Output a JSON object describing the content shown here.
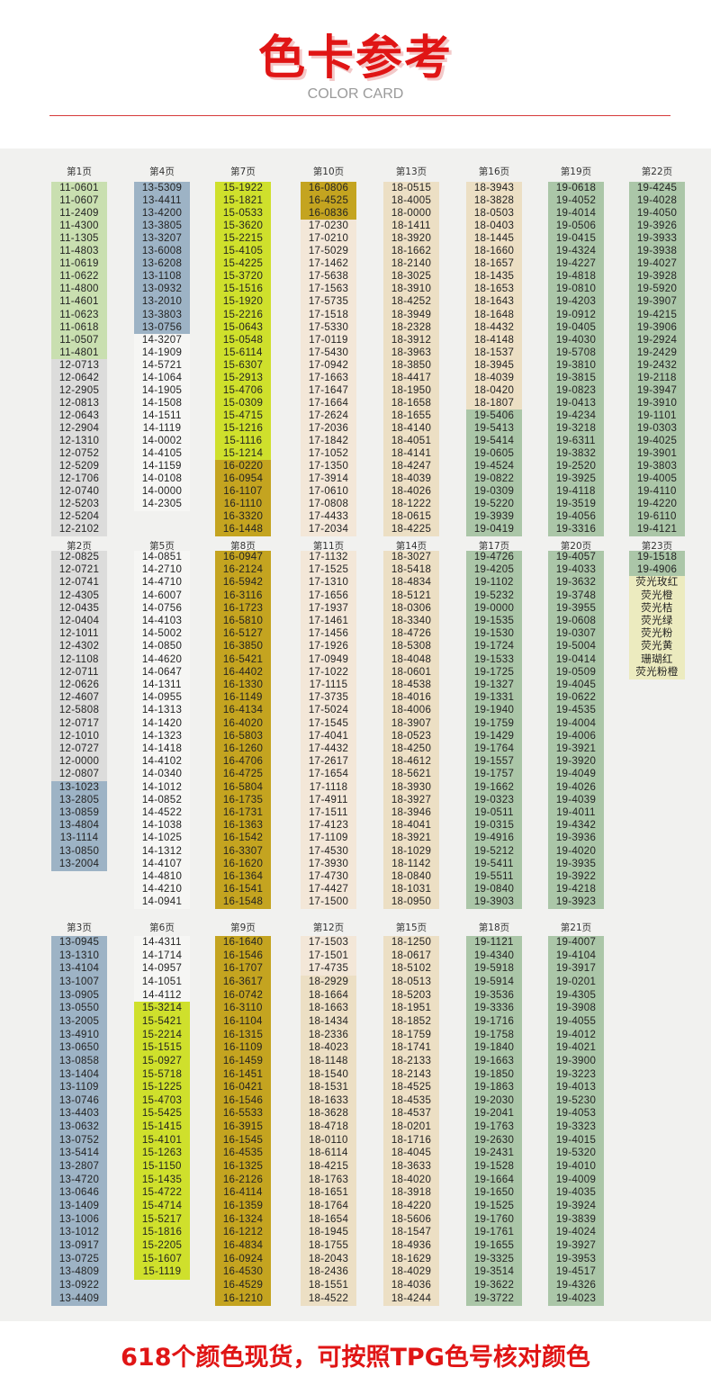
{
  "header": {
    "title": "色卡参考",
    "subtitle": "COLOR CARD"
  },
  "pages": [
    {
      "label": "第1页",
      "codes": [
        "11-0601",
        "11-0607",
        "11-2409",
        "11-4300",
        "11-1305",
        "11-4803",
        "11-0619",
        "11-0622",
        "11-4800",
        "11-4601",
        "11-0623",
        "11-0618",
        "11-0507",
        "11-4801",
        "12-0713",
        "12-0642",
        "12-2905",
        "12-0813",
        "12-0643",
        "12-2904",
        "12-1310",
        "12-0752",
        "12-5209",
        "12-1706",
        "12-0740",
        "12-5203",
        "12-5204",
        "12-2102"
      ]
    },
    {
      "label": "第2页",
      "codes": [
        "12-0825",
        "12-0721",
        "12-0741",
        "12-4305",
        "12-0435",
        "12-0404",
        "12-1011",
        "12-4302",
        "12-1108",
        "12-0711",
        "12-0626",
        "12-4607",
        "12-5808",
        "12-0717",
        "12-1010",
        "12-0727",
        "12-0000",
        "12-0807",
        "13-1023",
        "13-2805",
        "13-0859",
        "13-4804",
        "13-1114",
        "13-0850",
        "13-2004"
      ]
    },
    {
      "label": "第3页",
      "codes": [
        "13-0945",
        "13-1310",
        "13-4104",
        "13-1007",
        "13-0905",
        "13-0550",
        "13-2005",
        "13-4910",
        "13-0650",
        "13-0858",
        "13-1404",
        "13-1109",
        "13-0746",
        "13-4403",
        "13-0632",
        "13-0752",
        "13-5414",
        "13-2807",
        "13-4720",
        "13-0646",
        "13-1409",
        "13-1006",
        "13-1012",
        "13-0917",
        "13-0725",
        "13-4809",
        "13-0922",
        "13-4409"
      ]
    },
    {
      "label": "第4页",
      "codes": [
        "13-5309",
        "13-4411",
        "13-4200",
        "13-3805",
        "13-3207",
        "13-6008",
        "13-6208",
        "13-1108",
        "13-0932",
        "13-2010",
        "13-3803",
        "13-0756",
        "14-3207",
        "14-1909",
        "14-5721",
        "14-1064",
        "14-1905",
        "14-1508",
        "14-1511",
        "14-1119",
        "14-0002",
        "14-4105",
        "14-1159",
        "14-0108",
        "14-0000",
        "14-2305"
      ]
    },
    {
      "label": "第5页",
      "codes": [
        "14-0851",
        "14-2710",
        "14-4710",
        "14-6007",
        "14-0756",
        "14-4103",
        "14-5002",
        "14-0850",
        "14-4620",
        "14-0647",
        "14-1311",
        "14-0955",
        "14-1313",
        "14-1420",
        "14-1323",
        "14-1418",
        "14-4102",
        "14-0340",
        "14-1012",
        "14-0852",
        "14-4522",
        "14-1038",
        "14-1025",
        "14-1312",
        "14-4107",
        "14-4810",
        "14-4210",
        "14-0941"
      ]
    },
    {
      "label": "第6页",
      "codes": [
        "14-4311",
        "14-1714",
        "14-0957",
        "14-1051",
        "14-4112",
        "15-3214",
        "15-5421",
        "15-2214",
        "15-1515",
        "15-0927",
        "15-5718",
        "15-1225",
        "15-4703",
        "15-5425",
        "15-1415",
        "15-4101",
        "15-1263",
        "15-1150",
        "15-1435",
        "15-4722",
        "15-4714",
        "15-5217",
        "15-1816",
        "15-2205",
        "15-1607",
        "15-1119"
      ]
    },
    {
      "label": "第7页",
      "codes": [
        "15-1922",
        "15-1821",
        "15-0533",
        "15-3620",
        "15-2215",
        "15-4105",
        "15-4225",
        "15-3720",
        "15-1516",
        "15-1920",
        "15-2216",
        "15-0643",
        "15-0548",
        "15-6114",
        "15-6307",
        "15-2913",
        "15-4706",
        "15-0309",
        "15-4715",
        "15-1216",
        "15-1116",
        "15-1214",
        "16-0220",
        "16-0954",
        "16-1107",
        "16-1110",
        "16-3320",
        "16-1448"
      ]
    },
    {
      "label": "第8页",
      "codes": [
        "16-0947",
        "16-2124",
        "16-5942",
        "16-3116",
        "16-1723",
        "16-5810",
        "16-5127",
        "16-3850",
        "16-5421",
        "16-4402",
        "16-1330",
        "16-1149",
        "16-4134",
        "16-4020",
        "16-5803",
        "16-1260",
        "16-4706",
        "16-4725",
        "16-5804",
        "16-1735",
        "16-1731",
        "16-1363",
        "16-1542",
        "16-3307",
        "16-1620",
        "16-1364",
        "16-1541",
        "16-1548"
      ]
    },
    {
      "label": "第9页",
      "codes": [
        "16-1640",
        "16-1546",
        "16-1707",
        "16-3617",
        "16-0742",
        "16-3110",
        "16-1104",
        "16-1315",
        "16-1109",
        "16-1459",
        "16-1451",
        "16-0421",
        "16-1546",
        "16-5533",
        "16-3915",
        "16-1545",
        "16-4535",
        "16-1325",
        "16-2126",
        "16-4114",
        "16-1359",
        "16-1324",
        "16-1212",
        "16-4834",
        "16-0924",
        "16-4530",
        "16-4529",
        "16-1210"
      ]
    },
    {
      "label": "第10页",
      "codes": [
        "16-0806",
        "16-4525",
        "16-0836",
        "17-0230",
        "17-0210",
        "17-5029",
        "17-1462",
        "17-5638",
        "17-1563",
        "17-5735",
        "17-1518",
        "17-5330",
        "17-0119",
        "17-5430",
        "17-0942",
        "17-1663",
        "17-1647",
        "17-1664",
        "17-2624",
        "17-2036",
        "17-1842",
        "17-1052",
        "17-1350",
        "17-3914",
        "17-0610",
        "17-0808",
        "17-4433",
        "17-2034"
      ]
    },
    {
      "label": "第11页",
      "codes": [
        "17-1132",
        "17-1525",
        "17-1310",
        "17-1656",
        "17-1937",
        "17-1461",
        "17-1456",
        "17-1926",
        "17-0949",
        "17-1022",
        "17-1115",
        "17-3735",
        "17-5024",
        "17-1545",
        "17-4041",
        "17-4432",
        "17-2617",
        "17-1654",
        "17-1118",
        "17-4911",
        "17-1511",
        "17-4123",
        "17-1109",
        "17-4530",
        "17-3930",
        "17-4730",
        "17-4427",
        "17-1500"
      ]
    },
    {
      "label": "第12页",
      "codes": [
        "17-1503",
        "17-1501",
        "17-4735",
        "18-2929",
        "18-1664",
        "18-1663",
        "18-1434",
        "18-2336",
        "18-4023",
        "18-1148",
        "18-1540",
        "18-1531",
        "18-1633",
        "18-3628",
        "18-4718",
        "18-0110",
        "18-6114",
        "18-4215",
        "18-1763",
        "18-1651",
        "18-1764",
        "18-1654",
        "18-1945",
        "18-1755",
        "18-2043",
        "18-2436",
        "18-1551",
        "18-4522"
      ]
    },
    {
      "label": "第13页",
      "codes": [
        "18-0515",
        "18-4005",
        "18-0000",
        "18-1411",
        "18-3920",
        "18-1662",
        "18-2140",
        "18-3025",
        "18-3910",
        "18-4252",
        "18-3949",
        "18-2328",
        "18-3912",
        "18-3963",
        "18-3850",
        "18-4417",
        "18-1950",
        "18-1658",
        "18-1655",
        "18-4140",
        "18-4051",
        "18-4141",
        "18-4247",
        "18-4039",
        "18-4026",
        "18-1222",
        "18-0615",
        "18-4225"
      ]
    },
    {
      "label": "第14页",
      "codes": [
        "18-3027",
        "18-5418",
        "18-4834",
        "18-5121",
        "18-0306",
        "18-3340",
        "18-4726",
        "18-5308",
        "18-4048",
        "18-0601",
        "18-4538",
        "18-4016",
        "18-4006",
        "18-3907",
        "18-0523",
        "18-4250",
        "18-4612",
        "18-5621",
        "18-3930",
        "18-3927",
        "18-3946",
        "18-4041",
        "18-3921",
        "18-1029",
        "18-1142",
        "18-0840",
        "18-1031",
        "18-0950"
      ]
    },
    {
      "label": "第15页",
      "codes": [
        "18-1250",
        "18-0617",
        "18-5102",
        "18-0513",
        "18-5203",
        "18-1951",
        "18-1852",
        "18-1759",
        "18-1741",
        "18-2133",
        "18-2143",
        "18-4525",
        "18-4535",
        "18-4537",
        "18-0201",
        "18-1716",
        "18-4045",
        "18-3633",
        "18-4020",
        "18-3918",
        "18-4220",
        "18-5606",
        "18-1547",
        "18-4936",
        "18-1629",
        "18-4029",
        "18-4036",
        "18-4244"
      ]
    },
    {
      "label": "第16页",
      "codes": [
        "18-3943",
        "18-3828",
        "18-0503",
        "18-0403",
        "18-1445",
        "18-1660",
        "18-1657",
        "18-1435",
        "18-1653",
        "18-1643",
        "18-1648",
        "18-4432",
        "18-4148",
        "18-1537",
        "18-3945",
        "18-4039",
        "18-0420",
        "18-1807",
        "19-5406",
        "19-5413",
        "19-5414",
        "19-0605",
        "19-4524",
        "19-0822",
        "19-0309",
        "19-5220",
        "19-3939",
        "19-0419"
      ]
    },
    {
      "label": "第17页",
      "codes": [
        "19-4726",
        "19-4205",
        "19-1102",
        "19-5232",
        "19-0000",
        "19-1535",
        "19-1530",
        "19-1724",
        "19-1533",
        "19-1725",
        "19-1327",
        "19-1331",
        "19-1940",
        "19-1759",
        "19-1429",
        "19-1764",
        "19-1557",
        "19-1757",
        "19-1662",
        "19-0323",
        "19-0511",
        "19-0315",
        "19-4916",
        "19-5212",
        "19-5411",
        "19-5511",
        "19-0840",
        "19-3903"
      ]
    },
    {
      "label": "第18页",
      "codes": [
        "19-1121",
        "19-4340",
        "19-5918",
        "19-5914",
        "19-3536",
        "19-3336",
        "19-1716",
        "19-1758",
        "19-1840",
        "19-1663",
        "19-1850",
        "19-1863",
        "19-2030",
        "19-2041",
        "19-1763",
        "19-2630",
        "19-2431",
        "19-1528",
        "19-1664",
        "19-1650",
        "19-1525",
        "19-1760",
        "19-1761",
        "19-1655",
        "19-3325",
        "19-3514",
        "19-3622",
        "19-3722"
      ]
    },
    {
      "label": "第19页",
      "codes": [
        "19-0618",
        "19-4052",
        "19-4014",
        "19-0506",
        "19-0415",
        "19-4324",
        "19-4227",
        "19-4818",
        "19-0810",
        "19-4203",
        "19-0912",
        "19-0405",
        "19-4030",
        "19-5708",
        "19-3810",
        "19-3815",
        "19-0823",
        "19-0413",
        "19-4234",
        "19-3218",
        "19-6311",
        "19-3832",
        "19-2520",
        "19-3925",
        "19-4118",
        "19-3519",
        "19-4056",
        "19-3316"
      ]
    },
    {
      "label": "第20页",
      "codes": [
        "19-4057",
        "19-4033",
        "19-3632",
        "19-3748",
        "19-3955",
        "19-0608",
        "19-0307",
        "19-5004",
        "19-0414",
        "19-0509",
        "19-4045",
        "19-0622",
        "19-4535",
        "19-4004",
        "19-4006",
        "19-3921",
        "19-3920",
        "19-4049",
        "19-4026",
        "19-4039",
        "19-4011",
        "19-4342",
        "19-3936",
        "19-4020",
        "19-3935",
        "19-3922",
        "19-4218",
        "19-3923"
      ]
    },
    {
      "label": "第21页",
      "codes": [
        "19-4007",
        "19-4104",
        "19-3917",
        "19-0201",
        "19-4305",
        "19-3908",
        "19-4055",
        "19-4012",
        "19-4021",
        "19-3900",
        "19-3223",
        "19-4013",
        "19-5230",
        "19-4053",
        "19-3323",
        "19-4015",
        "19-5320",
        "19-4010",
        "19-4009",
        "19-4035",
        "19-3924",
        "19-3839",
        "19-4024",
        "19-3927",
        "19-3953",
        "19-4517",
        "19-4326",
        "19-4023"
      ]
    },
    {
      "label": "第22页",
      "codes": [
        "19-4245",
        "19-4028",
        "19-4050",
        "19-3926",
        "19-3933",
        "19-3938",
        "19-4027",
        "19-3928",
        "19-5920",
        "19-3907",
        "19-4215",
        "19-3906",
        "19-2924",
        "19-2429",
        "19-2432",
        "19-2118",
        "19-3947",
        "19-3910",
        "19-1101",
        "19-0303",
        "19-4025",
        "19-3901",
        "19-3803",
        "19-4005",
        "19-4110",
        "19-4220",
        "19-6110",
        "19-4121"
      ]
    },
    {
      "label": "第23页",
      "codes": [
        "19-1518",
        "19-4906",
        "荧光玫红",
        "荧光橙",
        "荧光桔",
        "荧光绿",
        "荧光粉",
        "荧光黄",
        "珊瑚红",
        "荧光粉橙"
      ]
    }
  ],
  "footer": "618个颜色现货，可按照TPG色号核对颜色"
}
